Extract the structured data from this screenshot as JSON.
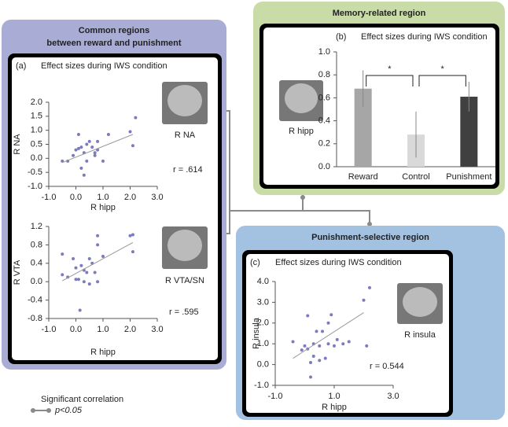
{
  "panels": {
    "common_title": [
      "Common regions",
      "between reward and punishment"
    ],
    "memory_title": "Memory-related region",
    "punishment_title": "Punishment-selective region"
  },
  "legend": {
    "title": "Significant correlation",
    "label": "p<0.05"
  },
  "chart_data": [
    {
      "type": "scatter",
      "panel_label": "(a)",
      "title": "Effect sizes during IWS condition",
      "xlabel": "R hipp",
      "ylabel": "R NA",
      "annotation": "r = .614",
      "region_label": "R NA",
      "color": "#7b7bbd",
      "x": [
        -0.5,
        -0.3,
        -0.1,
        0.0,
        0.1,
        0.1,
        0.2,
        0.2,
        0.3,
        0.4,
        0.4,
        0.5,
        0.6,
        0.7,
        0.7,
        0.8,
        0.8,
        1.0,
        1.2,
        2.0,
        2.1,
        2.2,
        0.3
      ],
      "y": [
        -0.1,
        -0.1,
        0.1,
        0.3,
        0.85,
        0.35,
        0.4,
        -0.35,
        0.2,
        0.5,
        -0.1,
        0.6,
        0.4,
        0.1,
        0.2,
        0.6,
        0.3,
        -0.1,
        0.85,
        0.95,
        0.45,
        1.45,
        -0.6
      ],
      "trendline": {
        "x": [
          -0.5,
          2.1
        ],
        "y": [
          -0.15,
          0.85
        ]
      },
      "xlim": [
        -1,
        3
      ],
      "xticks": [
        {
          "value": -1,
          "label": "-1.0"
        },
        {
          "value": 0,
          "label": "0.0"
        },
        {
          "value": 1,
          "label": "1.0"
        },
        {
          "value": 2,
          "label": "2.0"
        },
        {
          "value": 3,
          "label": "3.0"
        }
      ],
      "ylim": [
        -1,
        2
      ],
      "yticks": [
        {
          "value": -1,
          "label": "-1.0"
        },
        -0.5,
        {
          "value": 0,
          "label": "0.0"
        },
        0.5,
        {
          "value": 1,
          "label": "1.0"
        },
        1.5,
        {
          "value": 2,
          "label": "2.0"
        }
      ]
    },
    {
      "type": "scatter",
      "xlabel": "R hipp",
      "ylabel": "R VTA",
      "annotation": "r = .595",
      "region_label": "R VTA/SN",
      "color": "#7b7bbd",
      "x": [
        -0.5,
        -0.5,
        -0.3,
        -0.1,
        0.0,
        0.15,
        0.1,
        0.2,
        0.3,
        0.3,
        0.4,
        0.5,
        0.5,
        0.6,
        0.7,
        0.8,
        0.8,
        0.8,
        1.0,
        2.0,
        2.1,
        2.1,
        0.0
      ],
      "y": [
        0.6,
        0.15,
        0.1,
        0.5,
        0.3,
        -0.62,
        0.05,
        0.35,
        0.25,
        0.0,
        0.2,
        0.5,
        -0.05,
        0.4,
        0.2,
        1.0,
        0.8,
        0.0,
        0.55,
        1.0,
        1.02,
        0.65,
        0.05
      ],
      "trendline": {
        "x": [
          -0.5,
          2.1
        ],
        "y": [
          0.02,
          0.85
        ]
      },
      "xlim": [
        -1,
        3
      ],
      "xticks": [
        {
          "value": -1,
          "label": "-1.0"
        },
        {
          "value": 0,
          "label": "0.0"
        },
        {
          "value": 1,
          "label": "1.0"
        },
        {
          "value": 2,
          "label": "2.0"
        },
        {
          "value": 3,
          "label": "3.0"
        }
      ],
      "ylim": [
        -0.8,
        1.2
      ],
      "yticks": [
        -0.8,
        -0.4,
        {
          "value": 0,
          "label": "0.0"
        },
        0.4,
        0.8,
        1.2
      ]
    },
    {
      "type": "bar",
      "panel_label": "(b)",
      "title": "Effect sizes during IWS condition",
      "region_label": "R hipp",
      "categories": [
        "Reward",
        "Control",
        "Punishment"
      ],
      "values": [
        0.68,
        0.28,
        0.61
      ],
      "errors": [
        0.16,
        0.2,
        0.13
      ],
      "colors": [
        "#a6a6a6",
        "#d9d9d9",
        "#404040"
      ],
      "annotations": [
        "*",
        "*"
      ],
      "ylim": [
        0,
        1
      ],
      "yticks": [
        {
          "value": 0,
          "label": "0.0"
        },
        0.2,
        0.4,
        0.6,
        0.8,
        {
          "value": 1,
          "label": "1.0"
        }
      ]
    },
    {
      "type": "scatter",
      "panel_label": "(c)",
      "title": "Effect sizes during IWS condition",
      "xlabel": "R hipp",
      "ylabel": "R insula",
      "annotation": "r = 0.544",
      "region_label": "R insula",
      "color": "#7b7bbd",
      "x": [
        -0.4,
        -0.1,
        0.0,
        0.1,
        0.1,
        0.2,
        0.2,
        0.3,
        0.4,
        0.5,
        0.5,
        0.6,
        0.7,
        0.8,
        0.8,
        0.9,
        1.0,
        1.1,
        1.3,
        1.5,
        2.0,
        2.1,
        2.2,
        0.3
      ],
      "y": [
        1.1,
        0.7,
        0.9,
        0.75,
        2.35,
        0.1,
        -0.6,
        1.0,
        1.6,
        0.9,
        0.2,
        1.6,
        0.3,
        1.0,
        2.0,
        2.4,
        0.9,
        1.2,
        1.0,
        1.1,
        3.1,
        0.9,
        3.7,
        0.4
      ],
      "trendline": {
        "x": [
          -0.4,
          2.0
        ],
        "y": [
          0.3,
          2.5
        ]
      },
      "xlim": [
        -1,
        3
      ],
      "xticks": [
        {
          "value": -1,
          "label": "-1.0"
        },
        {
          "value": 1,
          "label": "1.0"
        },
        {
          "value": 3,
          "label": "3.0"
        }
      ],
      "ylim": [
        -1,
        4
      ],
      "yticks": [
        {
          "value": -1,
          "label": "-1.0"
        },
        {
          "value": 0,
          "label": "0.0"
        },
        {
          "value": 1,
          "label": "1.0"
        },
        {
          "value": 2,
          "label": "2.0"
        },
        {
          "value": 3,
          "label": "3.0"
        },
        {
          "value": 4,
          "label": "4.0"
        }
      ]
    }
  ]
}
